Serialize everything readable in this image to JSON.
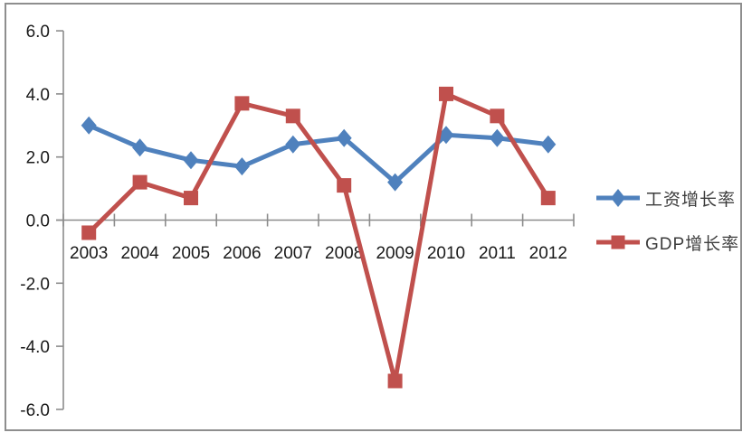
{
  "chart_data": {
    "type": "line",
    "title": "",
    "xlabel": "",
    "ylabel": "",
    "categories": [
      "2003",
      "2004",
      "2005",
      "2006",
      "2007",
      "2008",
      "2009",
      "2010",
      "2011",
      "2012"
    ],
    "series": [
      {
        "name": "工资增长率",
        "values": [
          3.0,
          2.3,
          1.9,
          1.7,
          2.4,
          2.6,
          1.2,
          2.7,
          2.6,
          2.4
        ],
        "color": "#4F81BD",
        "marker": "diamond"
      },
      {
        "name": "GDP增长率",
        "values": [
          -0.4,
          1.2,
          0.7,
          3.7,
          3.3,
          1.1,
          -5.1,
          4.0,
          3.3,
          0.7
        ],
        "color": "#C0504D",
        "marker": "square"
      }
    ],
    "ylim": [
      -6.0,
      6.0
    ],
    "ytick_step": 2.0,
    "ytick_labels": [
      "6.0",
      "4.0",
      "2.0",
      "0.0",
      "-2.0",
      "-4.0",
      "-6.0"
    ],
    "grid": false,
    "legend_position": "right",
    "axis_color": "#8c8c8c",
    "label_color": "#1a1a1a",
    "frame_color": "#8e8e8e"
  }
}
